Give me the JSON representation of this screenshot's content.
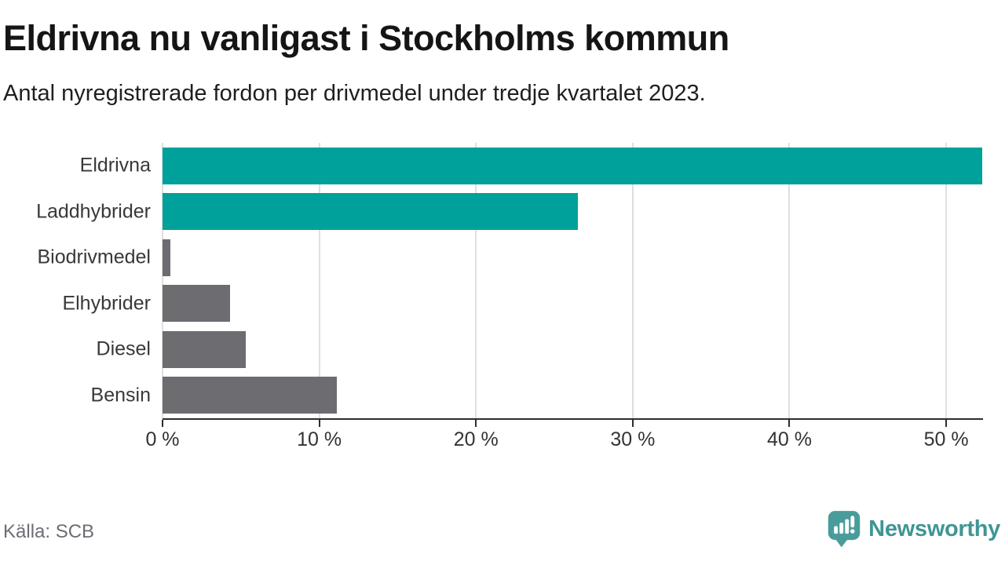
{
  "header": {
    "title": "Eldrivna nu vanligast i Stockholms kommun",
    "subtitle": "Antal nyregistrerade fordon per drivmedel under tredje kvartalet 2023."
  },
  "footer": {
    "source": "Källa: SCB",
    "brand_name": "Newsworthy",
    "brand_icon": "bar-chart-speech-bubble-icon"
  },
  "colors": {
    "electric_teal": "#00a19a",
    "other_gray": "#6c6c71",
    "gridline": "#dfdfdf",
    "axis": "#2d2d2d",
    "brand_teal": "#3f9594",
    "brand_icon_teal": "#4a9c9a"
  },
  "chart_data": {
    "type": "bar",
    "orientation": "horizontal",
    "title": "Eldrivna nu vanligast i Stockholms kommun",
    "subtitle": "Antal nyregistrerade fordon per drivmedel under tredje kvartalet 2023.",
    "categories": [
      "Eldrivna",
      "Laddhybrider",
      "Biodrivmedel",
      "Elhybrider",
      "Diesel",
      "Bensin"
    ],
    "values": [
      52.3,
      26.5,
      0.5,
      4.3,
      5.3,
      11.1
    ],
    "unit": "%",
    "bar_colors": [
      "#00a19a",
      "#00a19a",
      "#6c6c71",
      "#6c6c71",
      "#6c6c71",
      "#6c6c71"
    ],
    "xlabel": "",
    "ylabel": "",
    "xlim": [
      0,
      52.3
    ],
    "x_ticks": [
      {
        "value": 0,
        "label": "0 %"
      },
      {
        "value": 10,
        "label": "10 %"
      },
      {
        "value": 20,
        "label": "20 %"
      },
      {
        "value": 30,
        "label": "30 %"
      },
      {
        "value": 40,
        "label": "40 %"
      },
      {
        "value": 50,
        "label": "50 %"
      }
    ],
    "grid": true,
    "legend": false
  }
}
